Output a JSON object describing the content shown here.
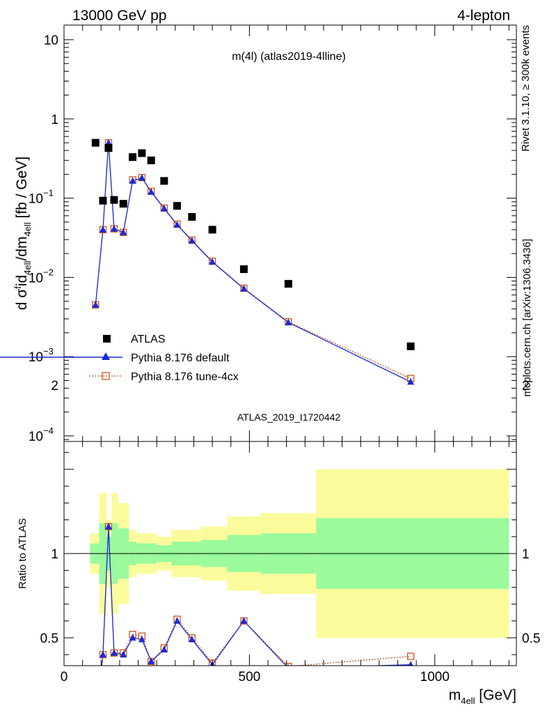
{
  "header": {
    "left": "13000 GeV pp",
    "right": "4-lepton"
  },
  "side_labels": {
    "top": "Rivet 3.1.10, ≥ 300k events",
    "bottom": "mcplots.cern.ch [arXiv:1306.3436]"
  },
  "plot_title": "m(4l) (atlas2019-4lline)",
  "watermark": "ATLAS_2019_I1720442",
  "legend": [
    {
      "label": "ATLAS",
      "marker": "square",
      "color": "#000000"
    },
    {
      "label": "Pythia 8.176 default",
      "marker": "triangle",
      "color": "#1a2ad6"
    },
    {
      "label": "Pythia 8.176 tune-4cx",
      "marker": "open-square",
      "color": "#c8541b"
    }
  ],
  "chart_data": [
    {
      "type": "scatter",
      "panel": "main",
      "xlabel": "m_4ell [GeV]",
      "ylabel": "d σ^fid_4ell / dm_4ell [fb / GeV]",
      "yscale": "log",
      "xlim": [
        0,
        1220
      ],
      "ylim": [
        8e-05,
        15
      ],
      "yticks": [
        {
          "v": 0.0001,
          "base": "10",
          "exp": "−4"
        },
        {
          "v": 0.001,
          "base": "10",
          "exp": "−3"
        },
        {
          "v": 0.01,
          "base": "10",
          "exp": "−2"
        },
        {
          "v": 0.1,
          "base": "10",
          "exp": "−1"
        },
        {
          "v": 1,
          "base": "1",
          "exp": ""
        },
        {
          "v": 10,
          "base": "10",
          "exp": ""
        }
      ],
      "series": [
        {
          "name": "ATLAS",
          "x": [
            85,
            105,
            120,
            135,
            160,
            185,
            210,
            235,
            270,
            305,
            345,
            400,
            485,
            605,
            935
          ],
          "y": [
            0.5,
            0.093,
            0.43,
            0.095,
            0.085,
            0.33,
            0.37,
            0.3,
            0.165,
            0.08,
            0.058,
            0.04,
            0.0127,
            0.0083,
            0.00135
          ]
        },
        {
          "name": "Pythia 8.176 default",
          "x": [
            85,
            105,
            120,
            135,
            160,
            185,
            210,
            235,
            270,
            305,
            345,
            400,
            485,
            605,
            935
          ],
          "y": [
            0.0045,
            0.04,
            0.5,
            0.041,
            0.037,
            0.165,
            0.18,
            0.12,
            0.074,
            0.046,
            0.029,
            0.0157,
            0.0072,
            0.0027,
            0.00048
          ]
        },
        {
          "name": "Pythia 8.176 tune-4cx",
          "x": [
            85,
            105,
            120,
            135,
            160,
            185,
            210,
            235,
            270,
            305,
            345,
            400,
            485,
            605,
            935
          ],
          "y": [
            0.0045,
            0.04,
            0.5,
            0.041,
            0.037,
            0.17,
            0.182,
            0.122,
            0.075,
            0.047,
            0.0295,
            0.016,
            0.0073,
            0.00275,
            0.00053
          ]
        }
      ]
    },
    {
      "type": "line",
      "panel": "ratio",
      "ylabel": "Ratio to ATLAS",
      "xlabel": "m_4ell [GeV]",
      "xlim": [
        0,
        1220
      ],
      "ylim": [
        0.35,
        2.3
      ],
      "xticks": [
        0,
        500,
        1000
      ],
      "yticks": [
        0.5,
        1,
        2
      ],
      "bands": [
        {
          "x0": 70,
          "x1": 95,
          "y1_low": 0.94,
          "y1_high": 1.06,
          "y2_low": 0.88,
          "y2_high": 1.12
        },
        {
          "x0": 95,
          "x1": 115,
          "y1_low": 0.82,
          "y1_high": 1.18,
          "y2_low": 0.64,
          "y2_high": 1.36
        },
        {
          "x0": 115,
          "x1": 128,
          "y1_low": 0.9,
          "y1_high": 1.1,
          "y2_low": 0.8,
          "y2_high": 1.2
        },
        {
          "x0": 128,
          "x1": 145,
          "y1_low": 0.82,
          "y1_high": 1.18,
          "y2_low": 0.64,
          "y2_high": 1.36
        },
        {
          "x0": 145,
          "x1": 175,
          "y1_low": 0.85,
          "y1_high": 1.15,
          "y2_low": 0.7,
          "y2_high": 1.3
        },
        {
          "x0": 175,
          "x1": 195,
          "y1_low": 0.93,
          "y1_high": 1.07,
          "y2_low": 0.86,
          "y2_high": 1.14
        },
        {
          "x0": 195,
          "x1": 225,
          "y1_low": 0.94,
          "y1_high": 1.06,
          "y2_low": 0.88,
          "y2_high": 1.12
        },
        {
          "x0": 225,
          "x1": 250,
          "y1_low": 0.94,
          "y1_high": 1.06,
          "y2_low": 0.88,
          "y2_high": 1.12
        },
        {
          "x0": 250,
          "x1": 290,
          "y1_low": 0.95,
          "y1_high": 1.05,
          "y2_low": 0.9,
          "y2_high": 1.1
        },
        {
          "x0": 290,
          "x1": 325,
          "y1_low": 0.93,
          "y1_high": 1.07,
          "y2_low": 0.86,
          "y2_high": 1.14
        },
        {
          "x0": 325,
          "x1": 370,
          "y1_low": 0.93,
          "y1_high": 1.07,
          "y2_low": 0.86,
          "y2_high": 1.14
        },
        {
          "x0": 370,
          "x1": 440,
          "y1_low": 0.92,
          "y1_high": 1.08,
          "y2_low": 0.84,
          "y2_high": 1.16
        },
        {
          "x0": 440,
          "x1": 530,
          "y1_low": 0.89,
          "y1_high": 1.11,
          "y2_low": 0.78,
          "y2_high": 1.22
        },
        {
          "x0": 530,
          "x1": 680,
          "y1_low": 0.88,
          "y1_high": 1.12,
          "y2_low": 0.76,
          "y2_high": 1.24
        },
        {
          "x0": 680,
          "x1": 1200,
          "y1_low": 0.79,
          "y1_high": 1.21,
          "y2_low": 0.5,
          "y2_high": 1.5
        }
      ],
      "series": [
        {
          "name": "Pythia 8.176 default",
          "x": [
            85,
            105,
            120,
            135,
            160,
            185,
            210,
            235,
            270,
            305,
            345,
            400,
            485,
            605,
            935
          ],
          "y": [
            0.009,
            0.4,
            1.16,
            0.41,
            0.4,
            0.5,
            0.49,
            0.36,
            0.43,
            0.6,
            0.49,
            0.34,
            0.6,
            0.32,
            0.34
          ]
        },
        {
          "name": "Pythia 8.176 tune-4cx",
          "x": [
            85,
            105,
            120,
            135,
            160,
            185,
            210,
            235,
            270,
            305,
            345,
            400,
            485,
            605,
            935
          ],
          "y": [
            0.009,
            0.4,
            1.16,
            0.41,
            0.41,
            0.52,
            0.51,
            0.36,
            0.44,
            0.61,
            0.5,
            0.35,
            0.6,
            0.33,
            0.39
          ]
        }
      ]
    }
  ]
}
